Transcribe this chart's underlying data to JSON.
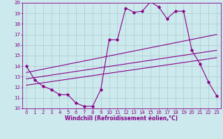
{
  "bg_color": "#cce9ee",
  "grid_color": "#aacccc",
  "line_color": "#880088",
  "xlim": [
    -0.5,
    23.5
  ],
  "ylim": [
    10,
    20
  ],
  "xticks": [
    0,
    1,
    2,
    3,
    4,
    5,
    6,
    7,
    8,
    9,
    10,
    11,
    12,
    13,
    14,
    15,
    16,
    17,
    18,
    19,
    20,
    21,
    22,
    23
  ],
  "yticks": [
    10,
    11,
    12,
    13,
    14,
    15,
    16,
    17,
    18,
    19,
    20
  ],
  "line1_x": [
    0,
    1,
    2,
    3,
    4,
    5,
    6,
    7,
    8,
    9,
    10,
    11,
    12,
    13,
    14,
    15,
    16,
    17,
    18,
    19,
    20,
    21,
    22,
    23
  ],
  "line1_y": [
    14.0,
    12.7,
    12.1,
    11.8,
    11.3,
    11.3,
    10.5,
    10.2,
    10.2,
    11.8,
    16.5,
    16.5,
    19.5,
    19.1,
    19.2,
    20.1,
    19.6,
    18.5,
    19.2,
    19.2,
    15.5,
    14.2,
    12.5,
    11.2
  ],
  "line2_x": [
    0,
    23
  ],
  "line2_y": [
    12.2,
    14.8
  ],
  "line3_x": [
    0,
    23
  ],
  "line3_y": [
    12.8,
    15.5
  ],
  "line4_x": [
    0,
    23
  ],
  "line4_y": [
    13.4,
    17.0
  ],
  "xlabel": "Windchill (Refroidissement éolien,°C)",
  "tick_fontsize": 5.0,
  "xlabel_fontsize": 5.5
}
